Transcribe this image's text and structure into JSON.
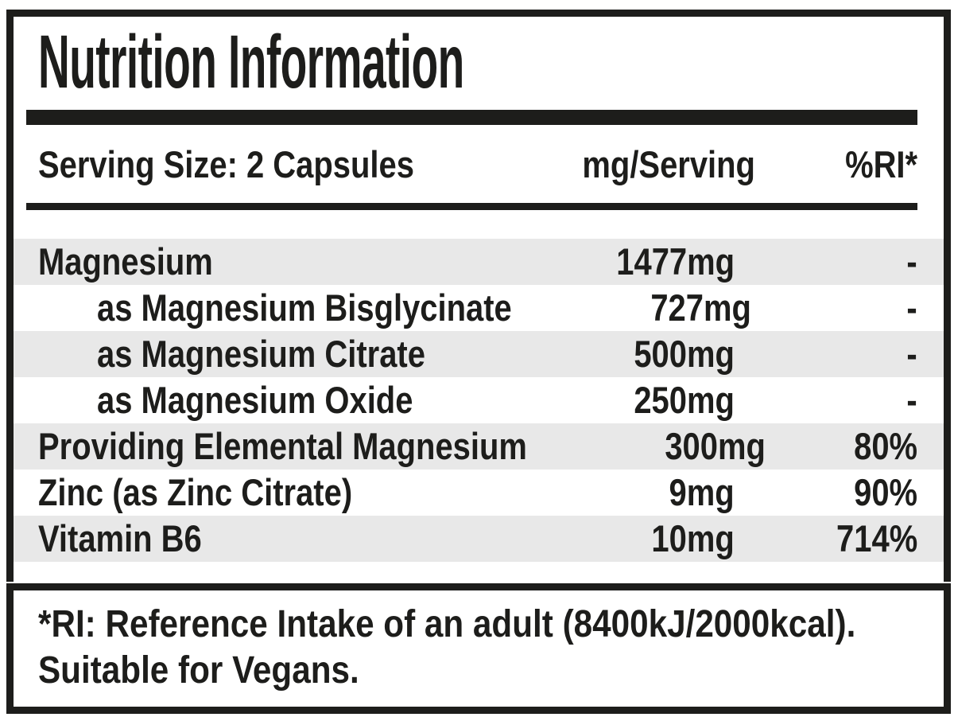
{
  "label": {
    "title": "Nutrition Information",
    "header": {
      "serving": "Serving Size: 2 Capsules",
      "amount_col": "mg/Serving",
      "ri_col": "%RI*"
    },
    "rows": [
      {
        "name": "Magnesium",
        "amount": "1477mg",
        "ri": "-",
        "indent": false
      },
      {
        "name": "as Magnesium Bisglycinate",
        "amount": "727mg",
        "ri": "-",
        "indent": true
      },
      {
        "name": "as Magnesium Citrate",
        "amount": "500mg",
        "ri": "-",
        "indent": true
      },
      {
        "name": "as Magnesium Oxide",
        "amount": "250mg",
        "ri": "-",
        "indent": true
      },
      {
        "name": "Providing Elemental Magnesium",
        "amount": "300mg",
        "ri": "80%",
        "indent": false
      },
      {
        "name": "Zinc (as Zinc Citrate)",
        "amount": "9mg",
        "ri": "90%",
        "indent": false
      },
      {
        "name": "Vitamin B6",
        "amount": "10mg",
        "ri": "714%",
        "indent": false
      }
    ],
    "footnote_line1": "*RI: Reference Intake of an adult (8400kJ/2000kcal).",
    "footnote_line2": "Suitable for Vegans.",
    "colors": {
      "ink": "#1d1d1b",
      "stripe": "#e8e8e8",
      "background": "#ffffff"
    }
  }
}
